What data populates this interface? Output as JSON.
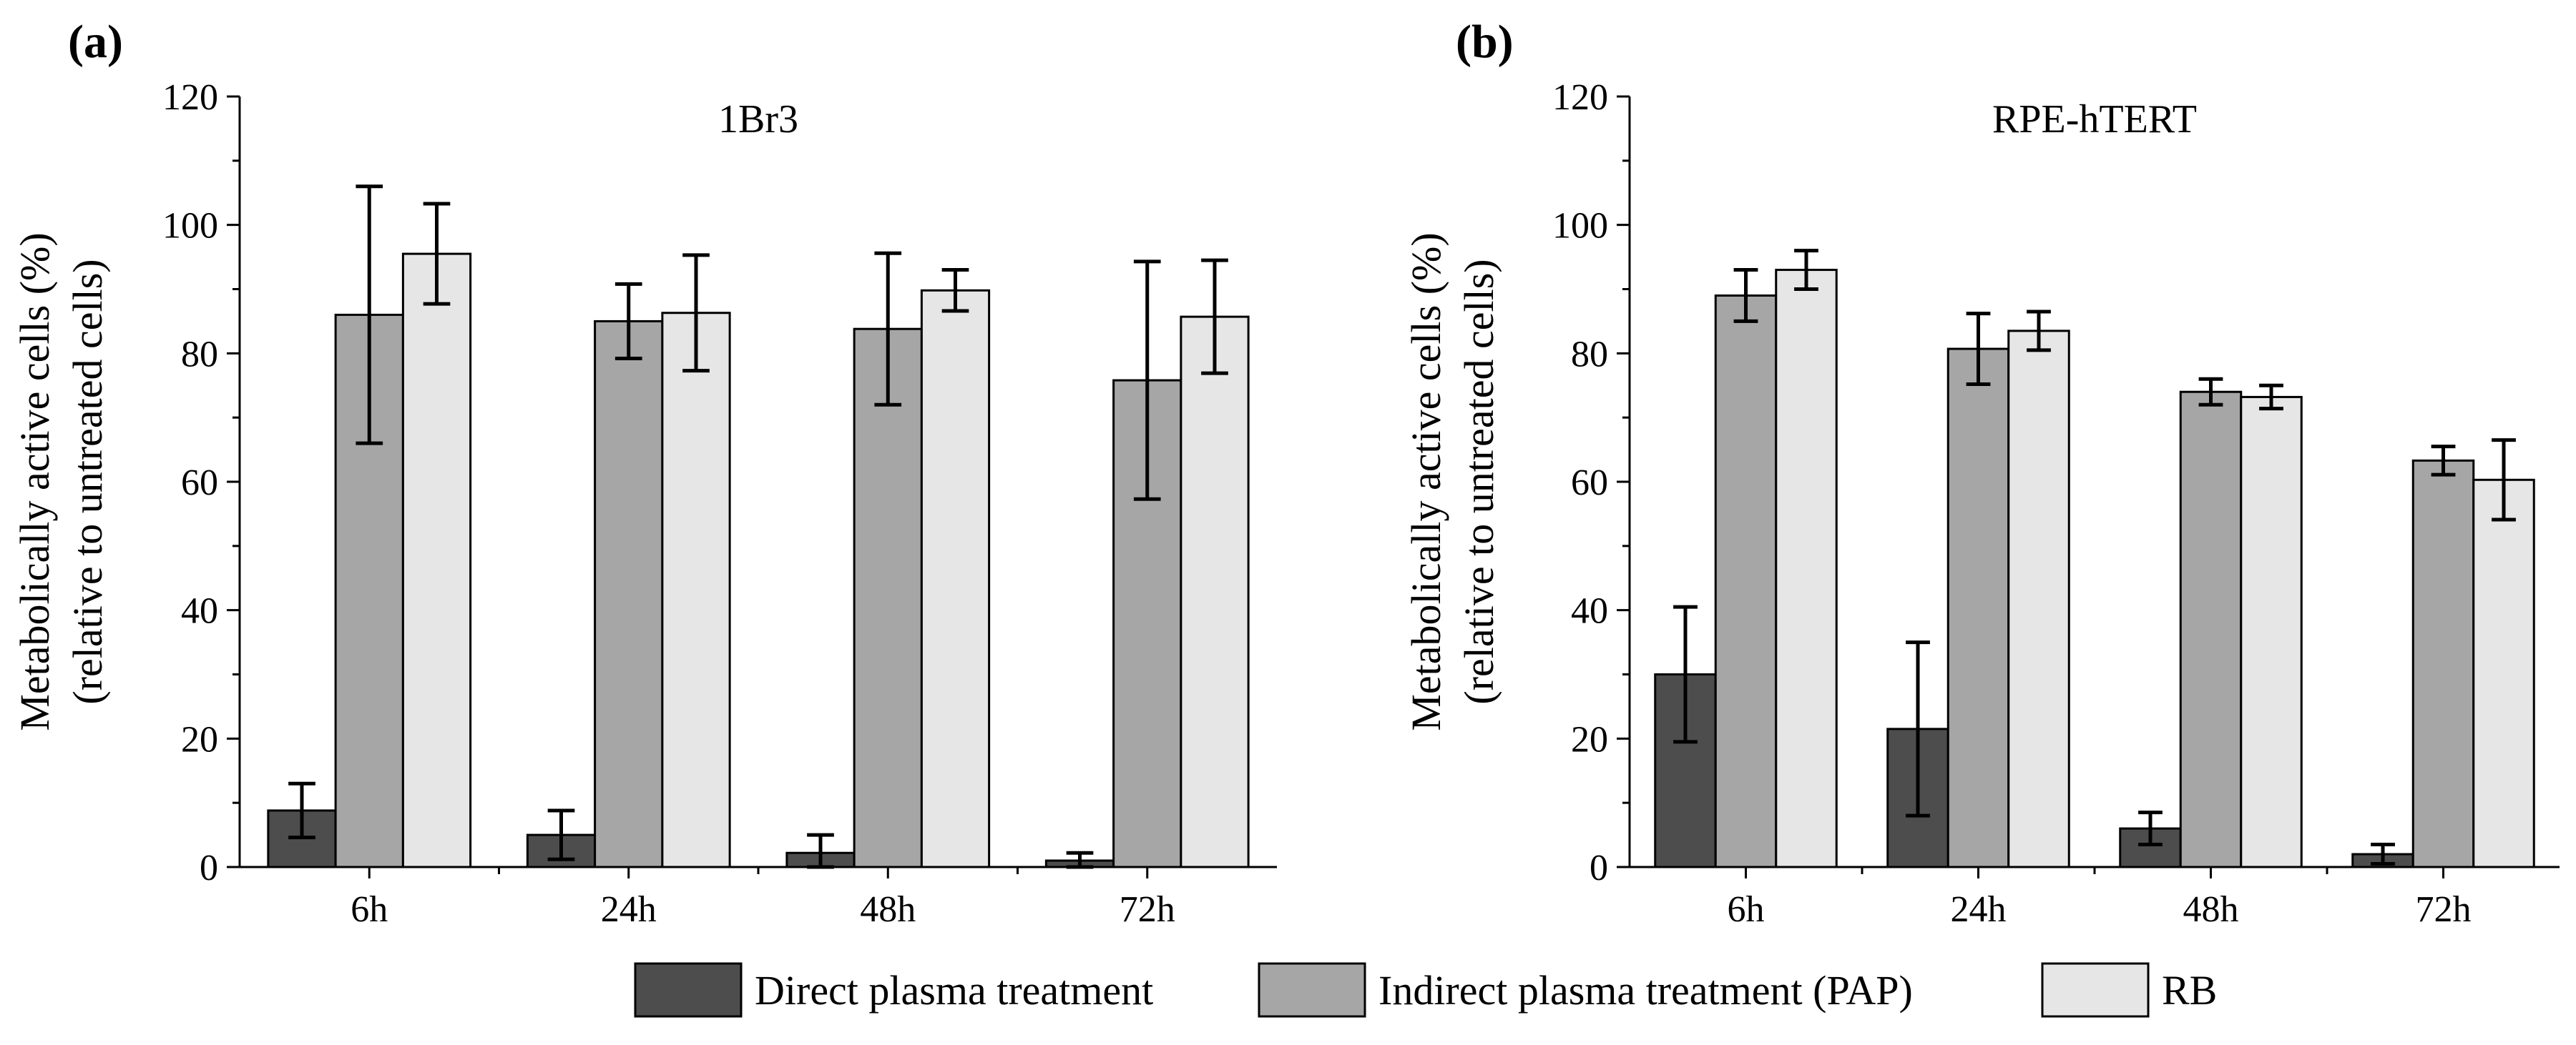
{
  "legend": [
    {
      "label": "Direct plasma treatment",
      "color": "#4d4d4d"
    },
    {
      "label": "Indirect plasma treatment (PAP)",
      "color": "#a6a6a6"
    },
    {
      "label": "RB",
      "color": "#e6e6e6"
    }
  ],
  "chart_data": [
    {
      "type": "bar",
      "panel_label": "(a)",
      "title": "1Br3",
      "ylabel_line1": "Metabolically active cells (%)",
      "ylabel_line2": "(relative to untreated cells)",
      "xlabel": "",
      "ylim": [
        0,
        120
      ],
      "yticks": [
        0,
        20,
        40,
        60,
        80,
        100,
        120
      ],
      "categories": [
        "6h",
        "24h",
        "48h",
        "72h"
      ],
      "series": [
        {
          "name": "Direct plasma treatment",
          "values": [
            8.8,
            5.0,
            2.2,
            1.0
          ],
          "errors": [
            4.2,
            3.8,
            2.8,
            1.2
          ]
        },
        {
          "name": "Indirect plasma treatment (PAP)",
          "values": [
            86.0,
            85.0,
            83.8,
            75.8
          ],
          "errors": [
            20.0,
            5.8,
            11.8,
            18.5
          ]
        },
        {
          "name": "RB",
          "values": [
            95.5,
            86.3,
            89.8,
            85.7
          ],
          "errors": [
            7.8,
            9.0,
            3.2,
            8.8
          ]
        }
      ]
    },
    {
      "type": "bar",
      "panel_label": "(b)",
      "title": "RPE-hTERT",
      "ylabel_line1": "Metabolically active cells (%)",
      "ylabel_line2": "(relative to untreated cells)",
      "xlabel": "",
      "ylim": [
        0,
        120
      ],
      "yticks": [
        0,
        20,
        40,
        60,
        80,
        100,
        120
      ],
      "categories": [
        "6h",
        "24h",
        "48h",
        "72h"
      ],
      "series": [
        {
          "name": "Direct plasma treatment",
          "values": [
            30.0,
            21.5,
            6.0,
            2.0
          ],
          "errors": [
            10.5,
            13.5,
            2.5,
            1.5
          ]
        },
        {
          "name": "Indirect plasma treatment (PAP)",
          "values": [
            89.0,
            80.7,
            74.0,
            63.3
          ],
          "errors": [
            4.0,
            5.5,
            2.0,
            2.2
          ]
        },
        {
          "name": "RB",
          "values": [
            93.0,
            83.5,
            73.2,
            60.3
          ],
          "errors": [
            3.0,
            3.0,
            1.8,
            6.2
          ]
        }
      ]
    }
  ]
}
